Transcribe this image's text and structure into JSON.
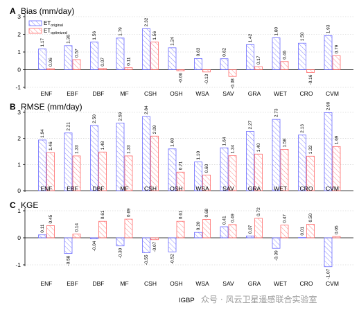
{
  "colors": {
    "original": "#6a6aff",
    "optimized": "#ff6a6a"
  },
  "legend": {
    "original": {
      "main": "ET",
      "sub": "original"
    },
    "optimized": {
      "main": "ET",
      "sub": "optimized"
    }
  },
  "xlabel": "IGBP",
  "watermark": "众号 · 风云卫星遥感联合实验室",
  "chart_data": [
    {
      "type": "bar",
      "letter": "A",
      "title": "Bias (mm/day)",
      "categories": [
        "ENF",
        "EBF",
        "DBF",
        "MF",
        "CSH",
        "OSH",
        "WSA",
        "SAV",
        "GRA",
        "WET",
        "CRO",
        "CVM"
      ],
      "ylim": [
        -1,
        3
      ],
      "yticks": [
        -1,
        0,
        1,
        2,
        3
      ],
      "series": [
        {
          "name": "ET original",
          "values": [
            1.17,
            1.36,
            1.56,
            1.79,
            2.32,
            1.24,
            0.63,
            0.62,
            1.42,
            1.8,
            1.5,
            1.93
          ]
        },
        {
          "name": "ET optimized",
          "values": [
            0.06,
            0.57,
            0.07,
            0.11,
            1.56,
            -0.06,
            -0.13,
            -0.38,
            0.17,
            0.46,
            -0.16,
            0.79
          ]
        }
      ],
      "labels": [
        [
          "1.17",
          "1.36",
          "1.56",
          "1.79",
          "2.32",
          "1.24",
          "0.63",
          "0.62",
          "1.42",
          "1.80",
          "1.50",
          "1.93"
        ],
        [
          "0.06",
          "0.57",
          "0.07",
          "0.11",
          "1.56",
          "-0.06",
          "-0.13",
          "-0.38",
          "0.17",
          "0.46",
          "-0.16",
          "0.79"
        ]
      ],
      "legend": "top-left",
      "grid": "horizontal-dotted"
    },
    {
      "type": "bar",
      "letter": "B",
      "title": "RMSE (mm/day)",
      "categories": [
        "ENF",
        "EBF",
        "DBF",
        "MF",
        "CSH",
        "OSH",
        "WSA",
        "SAV",
        "GRA",
        "WET",
        "CRO",
        "CVM"
      ],
      "ylim": [
        0,
        3
      ],
      "yticks": [
        0,
        1,
        2,
        3
      ],
      "series": [
        {
          "name": "ET original",
          "values": [
            1.94,
            2.21,
            2.5,
            2.59,
            2.84,
            1.6,
            1.1,
            1.64,
            2.27,
            2.73,
            2.13,
            2.99
          ]
        },
        {
          "name": "ET optimized",
          "values": [
            1.46,
            1.33,
            1.48,
            1.33,
            2.09,
            0.71,
            0.6,
            1.34,
            1.4,
            1.58,
            1.32,
            1.69
          ]
        }
      ],
      "labels": [
        [
          "1.94",
          "2.21",
          "2.50",
          "2.59",
          "2.84",
          "1.60",
          "1.10",
          "1.64",
          "2.27",
          "2.73",
          "2.13",
          "2.99"
        ],
        [
          "1.46",
          "1.33",
          "1.48",
          "1.33",
          "2.09",
          "0.71",
          "0.60",
          "1.34",
          "1.40",
          "1.58",
          "1.32",
          "1.69"
        ]
      ],
      "grid": "horizontal-dotted"
    },
    {
      "type": "bar",
      "letter": "C",
      "title": "KGE",
      "categories": [
        "ENF",
        "EBF",
        "DBF",
        "MF",
        "CSH",
        "OSH",
        "WSA",
        "SAV",
        "GRA",
        "WET",
        "CRO",
        "CVM"
      ],
      "ylim": [
        -1,
        1
      ],
      "yticks": [
        -1,
        0,
        1
      ],
      "series": [
        {
          "name": "ET original",
          "values": [
            0.11,
            -0.58,
            -0.04,
            -0.3,
            -0.55,
            -0.52,
            0.2,
            0.41,
            0.07,
            -0.39,
            0.01,
            -1.07
          ]
        },
        {
          "name": "ET optimized",
          "values": [
            0.45,
            0.14,
            0.61,
            0.69,
            -0.07,
            0.61,
            0.68,
            0.49,
            0.72,
            0.47,
            0.5,
            0.05
          ]
        }
      ],
      "labels": [
        [
          "0.11",
          "-0.58",
          "-0.04",
          "-0.30",
          "-0.55",
          "-0.52",
          "0.20",
          "0.41",
          "0.07",
          "-0.39",
          "0.01",
          "-1.07"
        ],
        [
          "0.45",
          "0.14",
          "0.61",
          "0.69",
          "-0.07",
          "0.61",
          "0.68",
          "0.49",
          "0.72",
          "0.47",
          "0.50",
          "0.05"
        ]
      ],
      "grid": "horizontal-dotted"
    }
  ]
}
